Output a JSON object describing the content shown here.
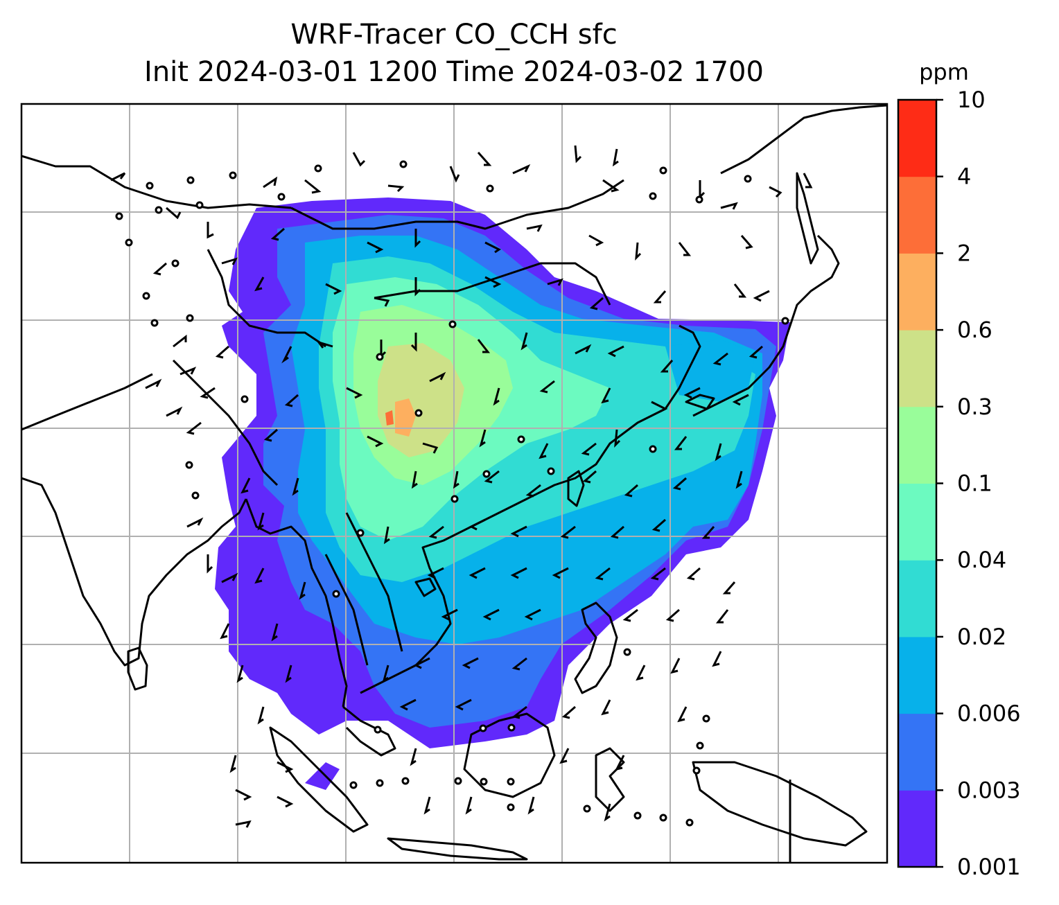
{
  "title": {
    "line1": "WRF-Tracer CO_CCH sfc",
    "line2": "Init 2024-03-01 1200 Time 2024-03-02 1700"
  },
  "colorbar": {
    "unit": "ppm",
    "levels": [
      "0.001",
      "0.003",
      "0.006",
      "0.02",
      "0.04",
      "0.1",
      "0.3",
      "0.6",
      "2",
      "4",
      "10"
    ],
    "colors": [
      "#6129fb",
      "#3474f5",
      "#07b1ea",
      "#31dcd3",
      "#6cfac0",
      "#99fd9a",
      "#cde188",
      "#fdaf5f",
      "#fd6e38",
      "#fe2c16"
    ]
  },
  "map": {
    "gridlines": true,
    "features": [
      "coastlines",
      "country-borders",
      "wind-barbs",
      "tracer-concentration-fill"
    ]
  }
}
